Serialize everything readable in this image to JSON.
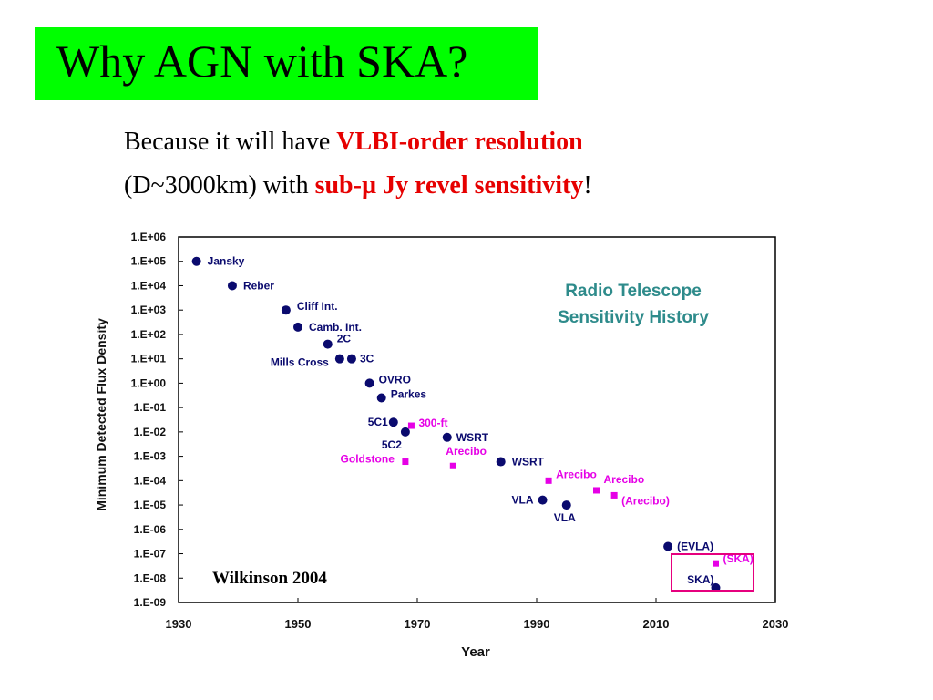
{
  "slide": {
    "title": "Why AGN with SKA?",
    "line1_prefix": "Because it will have ",
    "line1_highlight": "VLBI-order resolution",
    "line2_prefix": "(D~3000km) with  ",
    "line2_highlight": "sub-µ Jy revel sensitivity",
    "line2_suffix": "!",
    "highlight_color": "#e60000",
    "title_bg": "#00ff00"
  },
  "chart_data": {
    "type": "scatter",
    "title": "Radio Telescope Sensitivity History",
    "xlabel": "Year",
    "ylabel": "Minimum Detected Flux Density",
    "xlim": [
      1930,
      2030
    ],
    "ylim_log10": [
      -9,
      6
    ],
    "y_scale": "log",
    "x_ticks": [
      "1930",
      "1950",
      "1970",
      "1990",
      "2010",
      "2030"
    ],
    "y_ticks": [
      "1.E+06",
      "1.E+05",
      "1.E+04",
      "1.E+03",
      "1.E+02",
      "1.E+01",
      "1.E+00",
      "1.E-01",
      "1.E-02",
      "1.E-03",
      "1.E-04",
      "1.E-05",
      "1.E-06",
      "1.E-07",
      "1.E-08",
      "1.E-09"
    ],
    "source": "Wilkinson 2004",
    "colors": {
      "navy": "#0a0a6e",
      "magenta": "#e600e6",
      "title": "#2e8b8b",
      "box": "#e6007e"
    },
    "series": [
      {
        "marker": "circle",
        "color": "#0a0a6e",
        "points": [
          {
            "label": "Jansky",
            "x": 1933,
            "y": 100000.0
          },
          {
            "label": "Reber",
            "x": 1939,
            "y": 10000.0
          },
          {
            "label": "Cliff  Int.",
            "x": 1948,
            "y": 1000.0
          },
          {
            "label": "Camb. Int.",
            "x": 1950,
            "y": 200.0
          },
          {
            "label": "2C",
            "x": 1955,
            "y": 40.0
          },
          {
            "label": "Mills Cross",
            "x": 1957,
            "y": 10.0
          },
          {
            "label": "3C",
            "x": 1959,
            "y": 10.0
          },
          {
            "label": "OVRO",
            "x": 1962,
            "y": 1
          },
          {
            "label": "Parkes",
            "x": 1964,
            "y": 0.25
          },
          {
            "label": "5C1",
            "x": 1966,
            "y": 0.025
          },
          {
            "label": "5C2",
            "x": 1968,
            "y": 0.01
          },
          {
            "label": "WSRT",
            "x": 1975,
            "y": 0.006
          },
          {
            "label": "WSRT",
            "x": 1984,
            "y": 0.0006
          },
          {
            "label": "VLA",
            "x": 1991,
            "y": 1.6e-05
          },
          {
            "label": "VLA",
            "x": 1995,
            "y": 1e-05
          },
          {
            "label": "(EVLA)",
            "x": 2012,
            "y": 2e-07
          },
          {
            "label": "SKA)",
            "x": 2020,
            "y": 4e-09
          }
        ]
      },
      {
        "marker": "square",
        "color": "#e600e6",
        "points": [
          {
            "label": "300-ft",
            "x": 1969,
            "y": 0.018
          },
          {
            "label": "Goldstone",
            "x": 1968,
            "y": 0.0006
          },
          {
            "label": "Arecibo",
            "x": 1976,
            "y": 0.0004
          },
          {
            "label": "Arecibo",
            "x": 1992,
            "y": 0.0001
          },
          {
            "label": "Arecibo",
            "x": 2000,
            "y": 4e-05
          },
          {
            "label": "(Arecibo)",
            "x": 2003,
            "y": 2.5e-05
          },
          {
            "label": "(SKA)",
            "x": 2020,
            "y": 4e-08
          }
        ]
      }
    ]
  }
}
